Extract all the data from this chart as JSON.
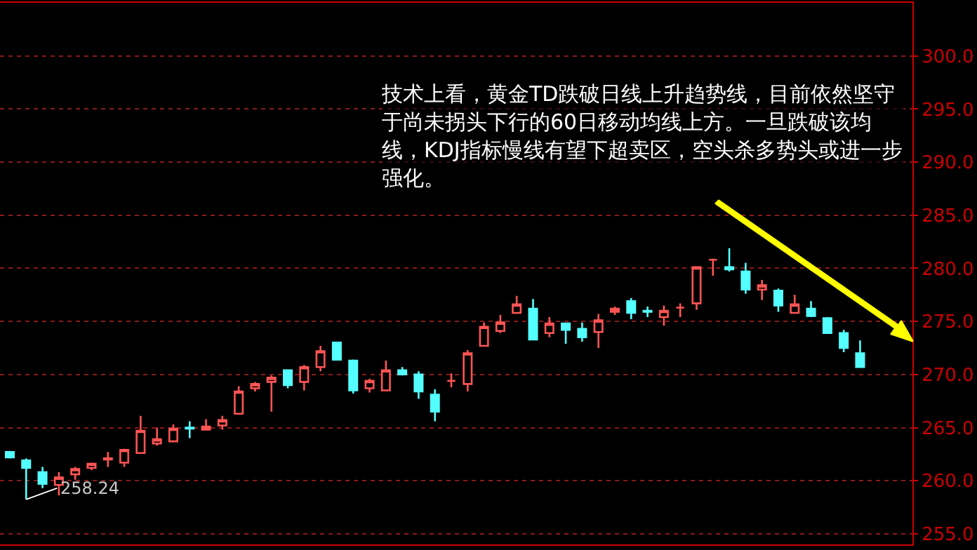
{
  "chart_data": {
    "type": "candlestick",
    "categories": [
      null,
      null,
      null,
      null,
      null,
      null,
      null,
      null,
      null,
      null,
      null,
      null,
      null,
      null,
      null,
      null,
      null,
      null,
      null,
      null,
      null,
      null,
      null,
      null,
      null,
      null,
      null,
      null,
      null,
      null,
      null,
      null,
      null,
      null,
      null,
      null,
      null,
      null,
      null,
      null,
      null,
      null,
      null,
      null,
      null,
      null,
      null,
      null,
      null,
      null,
      null,
      null,
      null
    ],
    "ohlc": [
      [
        262.7,
        262.8,
        262.1,
        262.2
      ],
      [
        261.9,
        262.1,
        258.24,
        261.2
      ],
      [
        260.8,
        261.3,
        259.3,
        259.7
      ],
      [
        259.6,
        260.8,
        258.6,
        260.3
      ],
      [
        260.6,
        261.3,
        260.1,
        261.1
      ],
      [
        261.2,
        261.7,
        261.0,
        261.6
      ],
      [
        262.0,
        262.7,
        261.3,
        262.1
      ],
      [
        261.7,
        263.0,
        261.3,
        262.9
      ],
      [
        262.6,
        266.1,
        262.6,
        264.7
      ],
      [
        263.5,
        265.0,
        263.3,
        263.9
      ],
      [
        263.7,
        265.3,
        263.7,
        264.9
      ],
      [
        265.0,
        265.6,
        264.0,
        264.9
      ],
      [
        264.8,
        265.8,
        264.8,
        265.1
      ],
      [
        265.2,
        266.1,
        264.8,
        265.7
      ],
      [
        266.3,
        268.9,
        266.3,
        268.4
      ],
      [
        268.7,
        269.3,
        268.4,
        269.1
      ],
      [
        269.3,
        269.9,
        266.5,
        269.7
      ],
      [
        270.4,
        270.4,
        268.7,
        269.0
      ],
      [
        269.3,
        270.9,
        268.5,
        270.7
      ],
      [
        270.7,
        272.7,
        270.3,
        272.2
      ],
      [
        273.0,
        273.0,
        271.3,
        271.4
      ],
      [
        271.3,
        271.4,
        268.2,
        268.5
      ],
      [
        268.7,
        269.6,
        268.3,
        269.4
      ],
      [
        268.5,
        271.3,
        268.5,
        270.4
      ],
      [
        270.4,
        270.7,
        269.9,
        270.0
      ],
      [
        270.0,
        270.3,
        267.7,
        268.4
      ],
      [
        268.1,
        268.6,
        265.6,
        266.5
      ],
      [
        269.4,
        270.1,
        268.8,
        269.4
      ],
      [
        269.1,
        272.3,
        268.4,
        272.0
      ],
      [
        272.7,
        274.9,
        272.7,
        274.5
      ],
      [
        274.1,
        275.6,
        273.9,
        274.9
      ],
      [
        275.8,
        277.4,
        275.7,
        276.6
      ],
      [
        276.2,
        277.1,
        273.2,
        273.3
      ],
      [
        273.9,
        275.4,
        273.5,
        274.8
      ],
      [
        274.8,
        274.8,
        272.9,
        274.2
      ],
      [
        274.3,
        274.9,
        273.1,
        273.5
      ],
      [
        274.0,
        275.7,
        272.5,
        275.1
      ],
      [
        275.9,
        276.4,
        275.6,
        276.2
      ],
      [
        276.9,
        277.2,
        275.2,
        275.8
      ],
      [
        276.0,
        276.4,
        275.4,
        275.9
      ],
      [
        275.4,
        276.5,
        274.6,
        276.0
      ],
      [
        276.3,
        276.7,
        275.4,
        276.3
      ],
      [
        276.7,
        280.1,
        276.1,
        280.1
      ],
      [
        280.8,
        280.9,
        279.3,
        280.8
      ],
      [
        280.1,
        281.9,
        279.7,
        279.9
      ],
      [
        279.7,
        280.5,
        277.6,
        278.0
      ],
      [
        278.0,
        278.9,
        277.0,
        278.4
      ],
      [
        277.9,
        278.1,
        275.9,
        276.5
      ],
      [
        275.8,
        277.5,
        275.8,
        276.6
      ],
      [
        276.2,
        276.9,
        275.4,
        275.5
      ],
      [
        275.3,
        275.4,
        273.9,
        273.9
      ],
      [
        273.9,
        274.2,
        272.1,
        272.5
      ],
      [
        272.0,
        273.2,
        270.7,
        270.7
      ]
    ],
    "colors": [
      "#54ffff",
      "#54ffff",
      "#54ffff",
      "#ff5454",
      "#ff5454",
      "#ff5454",
      "#ff5454",
      "#ff5454",
      "#ff5454",
      "#ff5454",
      "#ff5454",
      "#54ffff",
      "#ff5454",
      "#ff5454",
      "#ff5454",
      "#ff5454",
      "#ff5454",
      "#54ffff",
      "#ff5454",
      "#ff5454",
      "#54ffff",
      "#54ffff",
      "#ff5454",
      "#ff5454",
      "#54ffff",
      "#54ffff",
      "#54ffff",
      "#ff5454",
      "#ff5454",
      "#ff5454",
      "#ff5454",
      "#ff5454",
      "#54ffff",
      "#ff5454",
      "#54ffff",
      "#54ffff",
      "#ff5454",
      "#ff5454",
      "#54ffff",
      "#54ffff",
      "#ff5454",
      "#ff5454",
      "#ff5454",
      "#ff5454",
      "#54ffff",
      "#54ffff",
      "#ff5454",
      "#54ffff",
      "#ff5454",
      "#54ffff",
      "#54ffff",
      "#54ffff",
      "#54ffff"
    ],
    "ylim": [
      254,
      305
    ],
    "yticks": [
      {
        "value": 255,
        "label": "255.0"
      },
      {
        "value": 260,
        "label": "260.0"
      },
      {
        "value": 265,
        "label": "265.0"
      },
      {
        "value": 270,
        "label": "270.0"
      },
      {
        "value": 275,
        "label": "275.0"
      },
      {
        "value": 280,
        "label": "280.0"
      },
      {
        "value": 285,
        "label": "285.0"
      },
      {
        "value": 290,
        "label": "290.0"
      },
      {
        "value": 295,
        "label": "295.0"
      },
      {
        "value": 300,
        "label": "300.0"
      }
    ],
    "grid": "y",
    "annotations": [
      "技术上看，黄金TD跌破日线上升趋势线，目前依然坚守于尚未拐头下行的60日移动均线上方。一旦跌破该均线，KDJ指标慢线有望下超卖区，空头杀多势头或进一步强化。",
      "258.24"
    ]
  }
}
